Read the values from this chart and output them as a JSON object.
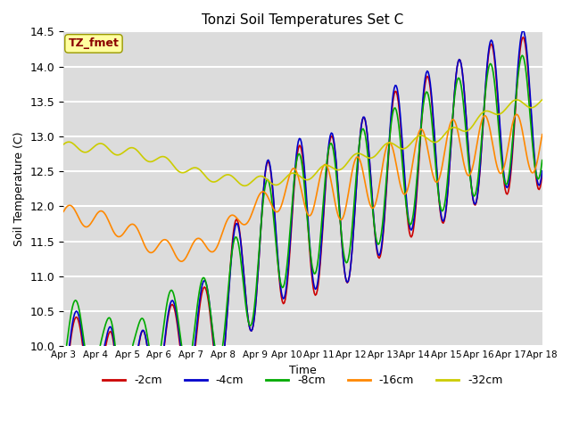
{
  "title": "Tonzi Soil Temperatures Set C",
  "xlabel": "Time",
  "ylabel": "Soil Temperature (C)",
  "ylim": [
    10.0,
    14.5
  ],
  "annotation": "TZ_fmet",
  "annotation_color": "#8B0000",
  "annotation_bg": "#FFFFA0",
  "background_color": "#DCDCDC",
  "grid_color": "white",
  "series": {
    "-2cm": {
      "color": "#CC0000",
      "lw": 1.2
    },
    "-4cm": {
      "color": "#0000CC",
      "lw": 1.2
    },
    "-8cm": {
      "color": "#00AA00",
      "lw": 1.2
    },
    "-16cm": {
      "color": "#FF8800",
      "lw": 1.2
    },
    "-32cm": {
      "color": "#CCCC00",
      "lw": 1.2
    }
  },
  "xtick_labels": [
    "Apr 3",
    "Apr 4",
    "Apr 5",
    "Apr 6",
    "Apr 7",
    "Apr 8",
    "Apr 9",
    "Apr 10",
    "Apr 11",
    "Apr 12",
    "Apr 13",
    "Apr 14",
    "Apr 15",
    "Apr 16",
    "Apr 17",
    "Apr 18"
  ],
  "n_points": 480
}
